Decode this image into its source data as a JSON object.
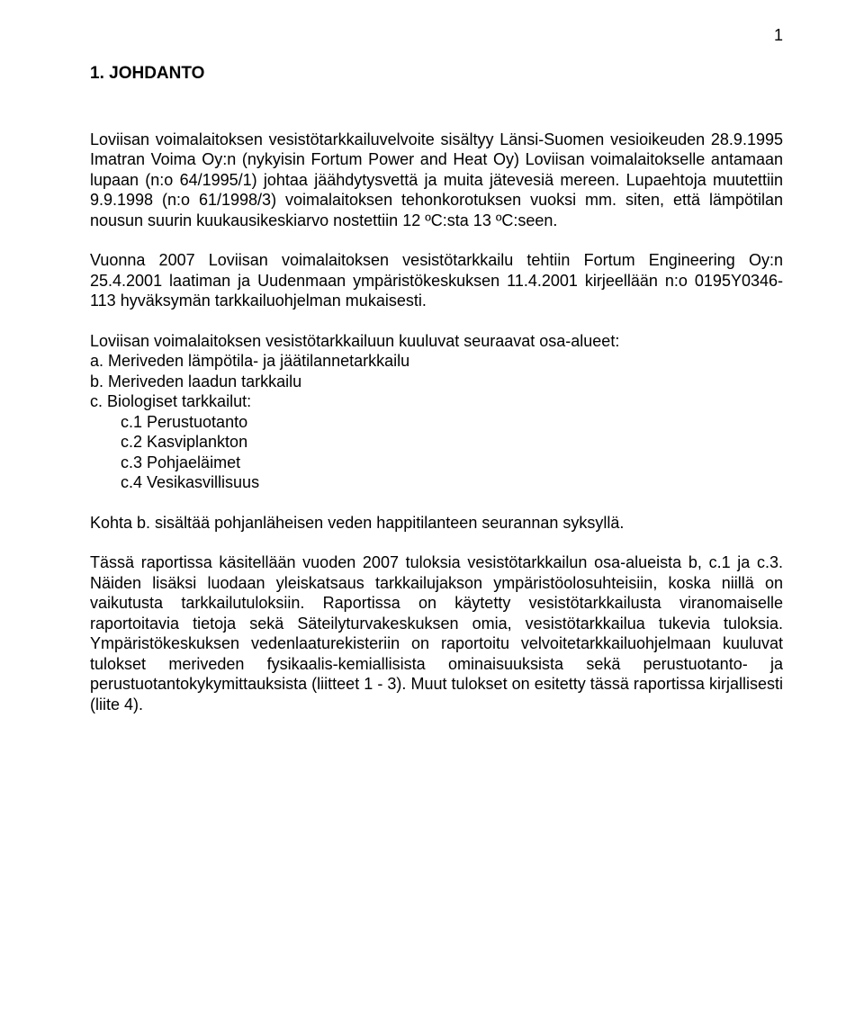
{
  "page_number": "1",
  "heading": "1. JOHDANTO",
  "p1": "Loviisan voimalaitoksen vesistötarkkailuvelvoite sisältyy Länsi-Suomen vesioikeuden 28.9.1995 Imatran Voima Oy:n (nykyisin Fortum Power and Heat Oy) Loviisan voimalaitokselle antamaan lupaan (n:o 64/1995/1) johtaa jäähdytysvettä ja muita jätevesiä mereen. Lupaehtoja muutettiin 9.9.1998 (n:o 61/1998/3) voimalaitoksen tehonkorotuksen vuoksi mm. siten, että lämpötilan nousun suurin kuukausikeskiarvo nostettiin 12 ºC:sta 13 ºC:seen.",
  "p2": "Vuonna 2007 Loviisan voimalaitoksen vesistötarkkailu tehtiin Fortum Engineering Oy:n 25.4.2001 laatiman ja Uudenmaan ympäristökeskuksen 11.4.2001 kirjeellään n:o 0195Y0346-113 hyväksymän tarkkailuohjelman mukaisesti.",
  "list_intro": "Loviisan voimalaitoksen vesistötarkkailuun kuuluvat seuraavat osa-alueet:",
  "list_a": "a. Meriveden lämpötila- ja jäätilannetarkkailu",
  "list_b": "b. Meriveden laadun tarkkailu",
  "list_c": "c. Biologiset tarkkailut:",
  "list_c1": "c.1 Perustuotanto",
  "list_c2": "c.2 Kasviplankton",
  "list_c3": "c.3 Pohjaeläimet",
  "list_c4": "c.4 Vesikasvillisuus",
  "p3": "Kohta b. sisältää pohjanläheisen veden happitilanteen seurannan syksyllä.",
  "p4": "Tässä raportissa käsitellään vuoden 2007 tuloksia vesistötarkkailun osa-alueista b, c.1 ja c.3. Näiden lisäksi luodaan yleiskatsaus tarkkailujakson ympäristöolosuhteisiin, koska niillä on vaikutusta tarkkailutuloksiin. Raportissa on käytetty vesistötarkkailusta viranomaiselle raportoitavia tietoja sekä Säteilyturvakeskuksen omia, vesistötarkkailua tukevia tuloksia. Ympäristökeskuksen vedenlaaturekisteriin on raportoitu velvoitetarkkailuohjelmaan kuuluvat tulokset meriveden fysikaalis-kemiallisista ominaisuuksista sekä perustuotanto- ja perustuotantokykymittauksista (liitteet 1 - 3). Muut tulokset on esitetty tässä raportissa kirjallisesti (liite 4)."
}
